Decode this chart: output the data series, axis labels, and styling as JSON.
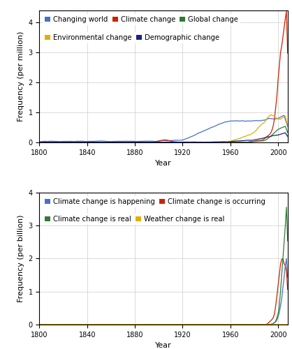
{
  "top_panel": {
    "ylabel": "Frequency (per million)",
    "xlabel": "Year",
    "xlim": [
      1800,
      2008
    ],
    "ylim": [
      0,
      4.4
    ],
    "yticks": [
      0,
      1,
      2,
      3,
      4
    ],
    "xticks": [
      1800,
      1840,
      1880,
      1920,
      1960,
      2000
    ],
    "legend_row1": [
      {
        "label": "Changing world",
        "color": "#4472C4"
      },
      {
        "label": "Climate change",
        "color": "#CC2200"
      },
      {
        "label": "Global change",
        "color": "#2E7D32"
      }
    ],
    "legend_row2": [
      {
        "label": "Environmental change",
        "color": "#E6AC00"
      },
      {
        "label": "Demographic change",
        "color": "#1A237E"
      }
    ]
  },
  "bottom_panel": {
    "ylabel": "Frequency (per billion)",
    "xlabel": "Year",
    "xlim": [
      1800,
      2008
    ],
    "ylim": [
      0,
      4.0
    ],
    "yticks": [
      0,
      1,
      2,
      3,
      4
    ],
    "xticks": [
      1800,
      1840,
      1880,
      1920,
      1960,
      2000
    ],
    "legend_row1": [
      {
        "label": "Climate change is happening",
        "color": "#4472C4"
      },
      {
        "label": "Climate change is occurring",
        "color": "#CC2200"
      }
    ],
    "legend_row2": [
      {
        "label": "Climate change is real",
        "color": "#2E7D32"
      },
      {
        "label": "Weather change is real",
        "color": "#E6AC00"
      }
    ]
  },
  "grid_color": "#cccccc",
  "legend_fontsize": 7.2,
  "axis_fontsize": 8,
  "tick_fontsize": 7
}
